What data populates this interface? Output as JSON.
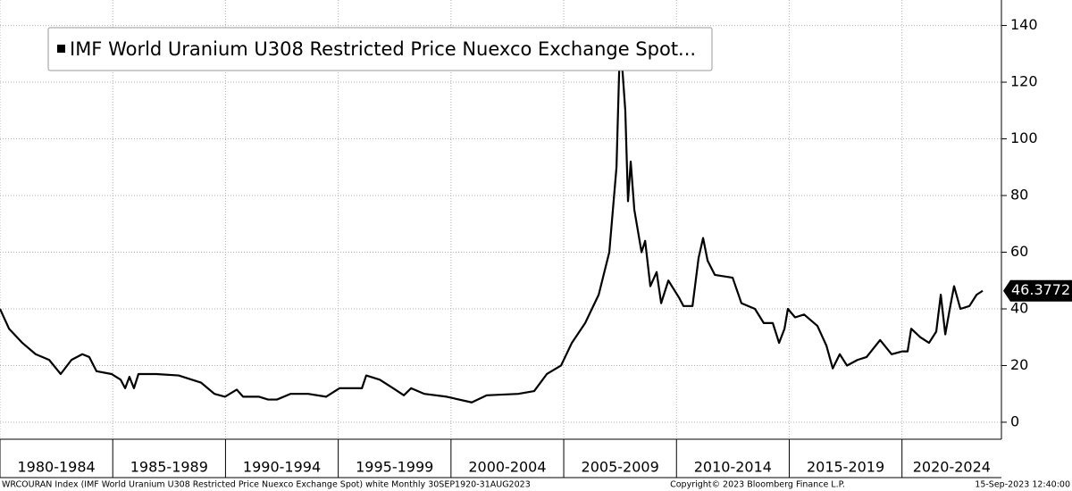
{
  "chart_data": {
    "type": "line",
    "series": [
      {
        "name": "IMF World Uranium U308 Restricted Price Nuexco Exchange Spot...",
        "color": "#000000",
        "x": [
          1980.0,
          1980.4,
          1980.99,
          1981.58,
          1982.18,
          1982.69,
          1983.17,
          1983.65,
          1983.96,
          1984.28,
          1984.95,
          1985.35,
          1985.55,
          1985.74,
          1985.94,
          1986.14,
          1986.93,
          1987.92,
          1988.91,
          1989.51,
          1989.98,
          1990.5,
          1990.78,
          1991.49,
          1991.89,
          1992.28,
          1992.88,
          1993.67,
          1994.46,
          1995.06,
          1996.05,
          1996.24,
          1996.84,
          1997.43,
          1997.91,
          1998.23,
          1998.82,
          1999.81,
          2000.92,
          2001.59,
          2002.98,
          2003.69,
          2004.25,
          2004.88,
          2005.36,
          2005.95,
          2006.55,
          2007.02,
          2007.34,
          2007.5,
          2007.73,
          2007.85,
          2007.97,
          2008.13,
          2008.45,
          2008.61,
          2008.84,
          2009.12,
          2009.32,
          2009.64,
          2010.11,
          2010.31,
          2010.71,
          2010.98,
          2011.18,
          2011.38,
          2011.7,
          2012.49,
          2012.88,
          2013.48,
          2013.87,
          2014.27,
          2014.55,
          2014.79,
          2014.94,
          2015.26,
          2015.66,
          2016.25,
          2016.65,
          2016.93,
          2017.24,
          2017.56,
          2018.03,
          2018.43,
          2019.03,
          2019.54,
          2020.02,
          2020.25,
          2020.41,
          2020.81,
          2021.2,
          2021.52,
          2021.72,
          2021.92,
          2022.12,
          2022.31,
          2022.59,
          2022.99,
          2023.31,
          2023.58
        ],
        "values": [
          40,
          33,
          28,
          24,
          22,
          17,
          22,
          24,
          23,
          18,
          17,
          15,
          12,
          16,
          12,
          17,
          17,
          16.5,
          14,
          10,
          9,
          11.5,
          9,
          9,
          8,
          8,
          10,
          10,
          9,
          12,
          12,
          16.5,
          15,
          12,
          9.5,
          12,
          10,
          9,
          7,
          9.5,
          10,
          11,
          17,
          20,
          28,
          35,
          45,
          60,
          90,
          136,
          110,
          78,
          92,
          75,
          60,
          64,
          48,
          53,
          42,
          50,
          44,
          41,
          41,
          58,
          65,
          57,
          52,
          51,
          42,
          40,
          35,
          35,
          28,
          33,
          40,
          37,
          38,
          34,
          27,
          19,
          24,
          20,
          22,
          23,
          29,
          24,
          25,
          25,
          33,
          30,
          28,
          32,
          45,
          31,
          40,
          48,
          40,
          41,
          45,
          46.3772
        ]
      }
    ],
    "xlim": [
      1980,
      2024.41
    ],
    "xticks": [
      {
        "value": 1980,
        "label": "1980-1984"
      },
      {
        "value": 1985,
        "label": "1985-1989"
      },
      {
        "value": 1990,
        "label": "1990-1994"
      },
      {
        "value": 1995,
        "label": "1995-1999"
      },
      {
        "value": 2000,
        "label": "2000-2004"
      },
      {
        "value": 2005,
        "label": "2005-2009"
      },
      {
        "value": 2010,
        "label": "2010-2014"
      },
      {
        "value": 2015,
        "label": "2015-2019"
      },
      {
        "value": 2020,
        "label": "2020-2024"
      }
    ],
    "ylim": [
      -6,
      149
    ],
    "yticks": [
      0,
      20,
      40,
      60,
      80,
      100,
      120,
      140
    ],
    "grid": true
  },
  "footer": {
    "left": "WRCOURAN Index (IMF World Uranium U308 Restricted Price Nuexco Exchange Spot) white  Monthly 30SEP1920-31AUG2023",
    "center": "Copyright© 2023 Bloomberg Finance L.P.",
    "right": "15-Sep-2023 12:40:00"
  }
}
